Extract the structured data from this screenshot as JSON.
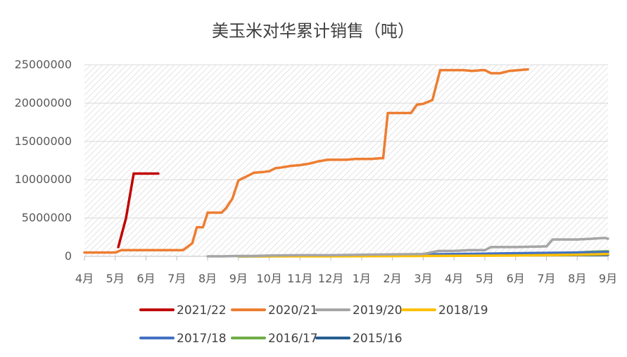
{
  "chart_data": {
    "type": "line",
    "title": "美玉米对华累计销售（吨）",
    "xlabel": "",
    "ylabel": "",
    "ylim": [
      0,
      25000000
    ],
    "y_ticks": [
      "0",
      "5000000",
      "10000000",
      "15000000",
      "20000000",
      "25000000"
    ],
    "y_tick_values": [
      0,
      5000000,
      10000000,
      15000000,
      20000000,
      25000000
    ],
    "x_ticks": [
      "4月",
      "5月",
      "6月",
      "7月",
      "8月",
      "9月",
      "10月",
      "11月",
      "12月",
      "1月",
      "2月",
      "3月",
      "4月",
      "5月",
      "6月",
      "7月",
      "8月",
      "9月"
    ],
    "x_tick_values": [
      0,
      1,
      2,
      3,
      4,
      5,
      6,
      7,
      8,
      9,
      10,
      11,
      12,
      13,
      14,
      15,
      16,
      17
    ],
    "x_unit_note": "x values are months elapsed since the first 4月 tick",
    "grid": true,
    "plot_background": "hatched light gray",
    "legend_position": "bottom",
    "series": [
      {
        "name": "2021/22",
        "color": "#C00000",
        "x": [
          1.1,
          1.35,
          1.6,
          2.0,
          2.4
        ],
        "y": [
          1200000,
          5000000,
          10800000,
          10800000,
          10800000
        ]
      },
      {
        "name": "2020/21",
        "color": "#ED7D31",
        "x": [
          0.0,
          0.5,
          1.0,
          1.2,
          1.5,
          2.0,
          2.5,
          2.9,
          3.2,
          3.5,
          3.65,
          3.85,
          4.0,
          4.2,
          4.45,
          4.6,
          4.8,
          5.0,
          5.2,
          5.5,
          5.8,
          6.0,
          6.2,
          6.4,
          6.7,
          7.0,
          7.3,
          7.6,
          7.9,
          8.2,
          8.5,
          8.8,
          9.0,
          9.3,
          9.6,
          9.7,
          9.85,
          10.0,
          10.3,
          10.6,
          10.8,
          11.0,
          11.3,
          11.55,
          11.8,
          12.0,
          12.3,
          12.6,
          12.9,
          13.0,
          13.2,
          13.5,
          13.8,
          14.1,
          14.4
        ],
        "y": [
          500000,
          500000,
          500000,
          800000,
          800000,
          800000,
          800000,
          800000,
          800000,
          1700000,
          3800000,
          3800000,
          5700000,
          5700000,
          5700000,
          6300000,
          7500000,
          9900000,
          10300000,
          10900000,
          11000000,
          11100000,
          11500000,
          11600000,
          11800000,
          11900000,
          12100000,
          12400000,
          12600000,
          12600000,
          12600000,
          12700000,
          12700000,
          12700000,
          12800000,
          12800000,
          18700000,
          18700000,
          18700000,
          18700000,
          19800000,
          19900000,
          20400000,
          24300000,
          24300000,
          24300000,
          24300000,
          24200000,
          24300000,
          24300000,
          23900000,
          23900000,
          24200000,
          24300000,
          24400000
        ]
      },
      {
        "name": "2019/20",
        "color": "#A5A5A5",
        "x": [
          4.0,
          4.5,
          5.0,
          5.5,
          6.0,
          7.0,
          8.0,
          9.0,
          10.0,
          11.0,
          11.5,
          12.0,
          12.5,
          13.0,
          13.2,
          13.5,
          14.0,
          14.5,
          15.0,
          15.2,
          15.5,
          16.0,
          16.5,
          16.9,
          17.0
        ],
        "y": [
          0,
          0,
          50000,
          50000,
          100000,
          150000,
          150000,
          200000,
          250000,
          300000,
          700000,
          700000,
          800000,
          800000,
          1200000,
          1200000,
          1200000,
          1250000,
          1300000,
          2200000,
          2200000,
          2200000,
          2300000,
          2400000,
          2300000
        ]
      },
      {
        "name": "2018/19",
        "color": "#FFC000",
        "x": [
          5.0,
          8.0,
          11.0,
          14.0,
          16.0,
          17.0
        ],
        "y": [
          0,
          0,
          50000,
          100000,
          200000,
          300000
        ]
      },
      {
        "name": "2017/18",
        "color": "#4472C4",
        "x": [
          5.0,
          6.0,
          7.0,
          8.0,
          9.0,
          10.0,
          11.0,
          12.0,
          13.0,
          14.0,
          15.0,
          16.0,
          17.0
        ],
        "y": [
          0,
          50000,
          50000,
          100000,
          150000,
          200000,
          250000,
          300000,
          350000,
          400000,
          450000,
          500000,
          550000
        ]
      },
      {
        "name": "2016/17",
        "color": "#70AD47",
        "x": [
          5.0,
          7.0,
          9.0,
          11.0,
          13.0,
          15.0,
          16.0,
          16.5,
          17.0
        ],
        "y": [
          0,
          50000,
          100000,
          150000,
          250000,
          350000,
          500000,
          600000,
          650000
        ]
      },
      {
        "name": "2015/16",
        "color": "#255E91",
        "x": [
          5.0,
          7.0,
          9.0,
          11.0,
          13.0,
          15.0,
          17.0
        ],
        "y": [
          0,
          30000,
          60000,
          90000,
          120000,
          150000,
          180000
        ]
      }
    ]
  }
}
